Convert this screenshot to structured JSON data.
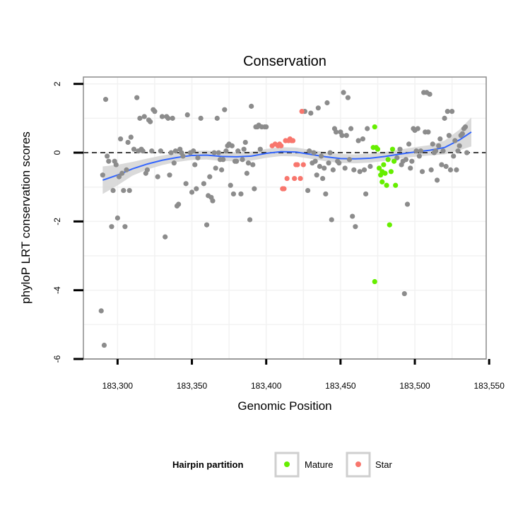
{
  "chart_data": {
    "type": "scatter",
    "title": "Conservation",
    "xlabel": "Genomic Position",
    "ylabel": "phyloP LRT conservation scores",
    "xlim": [
      183277,
      183548
    ],
    "ylim": [
      -6,
      2.2
    ],
    "x_ticks": [
      183300,
      183350,
      183400,
      183450,
      183500,
      183550
    ],
    "x_tick_labels": [
      "183,300",
      "183,350",
      "183,400",
      "183,450",
      "183,500",
      "183,550"
    ],
    "y_ticks": [
      -6,
      -4,
      -2,
      0,
      2
    ],
    "y_tick_labels": [
      "-6",
      "-4",
      "-2",
      "0",
      "2"
    ],
    "grid": true,
    "reference_line": {
      "y": 0,
      "style": "dashed"
    },
    "legend": {
      "title": "Hairpin partition",
      "position": "bottom",
      "entries": [
        {
          "label": "Mature",
          "color": "#66ee00"
        },
        {
          "label": "Star",
          "color": "#f8766d"
        }
      ]
    },
    "colors": {
      "other": "#8c8c8c",
      "Mature": "#66ee00",
      "Star": "#f8766d",
      "smooth_line": "#3366ff",
      "ribbon": "#d3d3d3"
    },
    "series": [
      {
        "name": "",
        "color": "#8c8c8c",
        "points": [
          [
            183289,
            -4.6
          ],
          [
            183290,
            -0.65
          ],
          [
            183291,
            -5.6
          ],
          [
            183292,
            1.55
          ],
          [
            183293,
            -0.1
          ],
          [
            183294,
            -0.25
          ],
          [
            183296,
            -2.15
          ],
          [
            183297,
            -1.1
          ],
          [
            183298,
            -0.25
          ],
          [
            183299,
            -0.35
          ],
          [
            183300,
            -1.9
          ],
          [
            183301,
            -0.7
          ],
          [
            183302,
            0.4
          ],
          [
            183303,
            -0.6
          ],
          [
            183304,
            -1.1
          ],
          [
            183305,
            -2.15
          ],
          [
            183306,
            -0.5
          ],
          [
            183307,
            0.3
          ],
          [
            183308,
            -1.1
          ],
          [
            183309,
            0.45
          ],
          [
            183311,
            0.1
          ],
          [
            183313,
            1.6
          ],
          [
            183314,
            0.05
          ],
          [
            183315,
            1.0
          ],
          [
            183316,
            0.1
          ],
          [
            183317,
            0.05
          ],
          [
            183318,
            1.05
          ],
          [
            183319,
            -0.6
          ],
          [
            183320,
            -0.5
          ],
          [
            183321,
            0.95
          ],
          [
            183322,
            0.9
          ],
          [
            183323,
            0.05
          ],
          [
            183324,
            1.25
          ],
          [
            183325,
            1.2
          ],
          [
            183327,
            -0.7
          ],
          [
            183329,
            0.05
          ],
          [
            183330,
            1.05
          ],
          [
            183332,
            -2.45
          ],
          [
            183333,
            1.05
          ],
          [
            183334,
            1.0
          ],
          [
            183335,
            -0.65
          ],
          [
            183336,
            0.0
          ],
          [
            183337,
            1.0
          ],
          [
            183338,
            -0.3
          ],
          [
            183339,
            0.05
          ],
          [
            183340,
            -1.55
          ],
          [
            183341,
            -1.5
          ],
          [
            183342,
            0.1
          ],
          [
            183343,
            0.0
          ],
          [
            183344,
            -0.1
          ],
          [
            183346,
            -0.9
          ],
          [
            183347,
            1.1
          ],
          [
            183349,
            0.0
          ],
          [
            183350,
            -1.15
          ],
          [
            183351,
            0.05
          ],
          [
            183352,
            -0.35
          ],
          [
            183353,
            -1.05
          ],
          [
            183354,
            -0.15
          ],
          [
            183356,
            1.0
          ],
          [
            183358,
            -0.9
          ],
          [
            183360,
            -2.1
          ],
          [
            183361,
            -1.25
          ],
          [
            183362,
            -0.7
          ],
          [
            183363,
            -1.3
          ],
          [
            183364,
            -1.4
          ],
          [
            183365,
            0.0
          ],
          [
            183366,
            -0.45
          ],
          [
            183367,
            1.0
          ],
          [
            183368,
            0.0
          ],
          [
            183369,
            -0.2
          ],
          [
            183370,
            -0.5
          ],
          [
            183371,
            -0.2
          ],
          [
            183372,
            1.25
          ],
          [
            183373,
            0.05
          ],
          [
            183374,
            0.2
          ],
          [
            183375,
            0.25
          ],
          [
            183376,
            -0.95
          ],
          [
            183377,
            0.2
          ],
          [
            183378,
            -1.2
          ],
          [
            183379,
            -0.25
          ],
          [
            183380,
            -0.25
          ],
          [
            183381,
            0.05
          ],
          [
            183383,
            -1.2
          ],
          [
            183384,
            -0.2
          ],
          [
            183385,
            0.1
          ],
          [
            183386,
            0.3
          ],
          [
            183387,
            -0.6
          ],
          [
            183388,
            -0.3
          ],
          [
            183389,
            -1.95
          ],
          [
            183390,
            1.35
          ],
          [
            183391,
            -0.35
          ],
          [
            183392,
            -1.05
          ],
          [
            183393,
            0.75
          ],
          [
            183394,
            0.75
          ],
          [
            183395,
            0.8
          ],
          [
            183396,
            0.1
          ],
          [
            183397,
            0.75
          ],
          [
            183399,
            0.75
          ],
          [
            183400,
            0.75
          ],
          [
            183426,
            1.2
          ],
          [
            183428,
            -1.1
          ],
          [
            183429,
            0.05
          ],
          [
            183430,
            1.15
          ],
          [
            183431,
            -0.3
          ],
          [
            183432,
            0.0
          ],
          [
            183433,
            -0.25
          ],
          [
            183434,
            -0.65
          ],
          [
            183435,
            1.3
          ],
          [
            183436,
            -0.4
          ],
          [
            183437,
            -0.1
          ],
          [
            183438,
            -0.75
          ],
          [
            183439,
            -0.45
          ],
          [
            183440,
            -1.2
          ],
          [
            183441,
            1.45
          ],
          [
            183442,
            -0.3
          ],
          [
            183443,
            0.0
          ],
          [
            183444,
            -1.95
          ],
          [
            183445,
            -0.5
          ],
          [
            183446,
            0.7
          ],
          [
            183447,
            0.6
          ],
          [
            183448,
            -0.25
          ],
          [
            183449,
            -0.3
          ],
          [
            183450,
            0.6
          ],
          [
            183451,
            0.5
          ],
          [
            183452,
            1.75
          ],
          [
            183453,
            -0.45
          ],
          [
            183454,
            0.5
          ],
          [
            183455,
            1.6
          ],
          [
            183456,
            -0.2
          ],
          [
            183457,
            0.7
          ],
          [
            183458,
            -1.85
          ],
          [
            183459,
            -0.5
          ],
          [
            183460,
            -2.15
          ],
          [
            183462,
            0.35
          ],
          [
            183463,
            -0.55
          ],
          [
            183465,
            0.4
          ],
          [
            183466,
            -0.5
          ],
          [
            183467,
            -1.2
          ],
          [
            183468,
            0.7
          ],
          [
            183470,
            -0.4
          ],
          [
            183488,
            -0.15
          ],
          [
            183490,
            0.1
          ],
          [
            183491,
            -0.35
          ],
          [
            183492,
            -0.25
          ],
          [
            183493,
            -4.1
          ],
          [
            183494,
            -0.2
          ],
          [
            183495,
            -1.5
          ],
          [
            183496,
            0.25
          ],
          [
            183497,
            -0.45
          ],
          [
            183498,
            -0.25
          ],
          [
            183499,
            0.7
          ],
          [
            183500,
            0.65
          ],
          [
            183501,
            0.05
          ],
          [
            183502,
            0.7
          ],
          [
            183503,
            -0.1
          ],
          [
            183504,
            0.05
          ],
          [
            183505,
            -0.55
          ],
          [
            183506,
            1.75
          ],
          [
            183507,
            0.6
          ],
          [
            183508,
            1.75
          ],
          [
            183509,
            0.6
          ],
          [
            183510,
            1.7
          ],
          [
            183511,
            -0.5
          ],
          [
            183512,
            0.25
          ],
          [
            183513,
            0.0
          ],
          [
            183514,
            0.05
          ],
          [
            183515,
            -0.8
          ],
          [
            183516,
            0.2
          ],
          [
            183517,
            0.4
          ],
          [
            183518,
            -0.35
          ],
          [
            183519,
            0.05
          ],
          [
            183520,
            1.0
          ],
          [
            183521,
            -0.4
          ],
          [
            183522,
            1.2
          ],
          [
            183523,
            0.5
          ],
          [
            183524,
            -0.5
          ],
          [
            183525,
            1.2
          ],
          [
            183526,
            -0.1
          ],
          [
            183527,
            0.35
          ],
          [
            183528,
            -0.5
          ],
          [
            183529,
            0.05
          ],
          [
            183530,
            0.2
          ],
          [
            183531,
            0.5
          ],
          [
            183532,
            0.55
          ],
          [
            183533,
            0.7
          ],
          [
            183534,
            0.75
          ],
          [
            183535,
            0.0
          ]
        ]
      },
      {
        "name": "Mature",
        "color": "#66ee00",
        "points": [
          [
            183472,
            0.15
          ],
          [
            183473,
            0.75
          ],
          [
            183473,
            -3.75
          ],
          [
            183474,
            0.15
          ],
          [
            183475,
            0.1
          ],
          [
            183476,
            -0.45
          ],
          [
            183477,
            -0.65
          ],
          [
            183478,
            -0.55
          ],
          [
            183478,
            -0.85
          ],
          [
            183479,
            -0.35
          ],
          [
            183480,
            -0.6
          ],
          [
            183481,
            -0.95
          ],
          [
            183482,
            -0.2
          ],
          [
            183483,
            -2.1
          ],
          [
            183484,
            -0.55
          ],
          [
            183485,
            0.1
          ],
          [
            183486,
            -0.25
          ],
          [
            183487,
            -0.95
          ]
        ]
      },
      {
        "name": "Star",
        "color": "#f8766d",
        "points": [
          [
            183404,
            0.2
          ],
          [
            183406,
            0.25
          ],
          [
            183408,
            0.2
          ],
          [
            183409,
            0.25
          ],
          [
            183410,
            0.2
          ],
          [
            183411,
            -1.05
          ],
          [
            183412,
            -1.05
          ],
          [
            183413,
            0.35
          ],
          [
            183414,
            -0.75
          ],
          [
            183415,
            0.35
          ],
          [
            183416,
            0.4
          ],
          [
            183417,
            0.35
          ],
          [
            183418,
            0.35
          ],
          [
            183419,
            -0.75
          ],
          [
            183420,
            -0.35
          ],
          [
            183421,
            -0.35
          ],
          [
            183423,
            -0.75
          ],
          [
            183424,
            1.2
          ],
          [
            183425,
            -0.35
          ]
        ]
      }
    ],
    "smooth": {
      "x": [
        183290,
        183300,
        183310,
        183320,
        183330,
        183340,
        183350,
        183360,
        183370,
        183380,
        183390,
        183400,
        183410,
        183420,
        183430,
        183440,
        183450,
        183460,
        183470,
        183480,
        183490,
        183500,
        183510,
        183520,
        183530,
        183538
      ],
      "y": [
        -0.8,
        -0.65,
        -0.47,
        -0.33,
        -0.22,
        -0.14,
        -0.08,
        -0.07,
        -0.11,
        -0.12,
        -0.1,
        -0.02,
        0.03,
        0.02,
        -0.05,
        -0.12,
        -0.17,
        -0.18,
        -0.16,
        -0.11,
        -0.04,
        0.02,
        0.07,
        0.15,
        0.37,
        0.6
      ],
      "se": [
        0.4,
        0.3,
        0.2,
        0.16,
        0.14,
        0.13,
        0.13,
        0.13,
        0.13,
        0.13,
        0.13,
        0.13,
        0.13,
        0.13,
        0.13,
        0.13,
        0.13,
        0.13,
        0.13,
        0.13,
        0.13,
        0.14,
        0.15,
        0.2,
        0.3,
        0.42
      ]
    }
  }
}
